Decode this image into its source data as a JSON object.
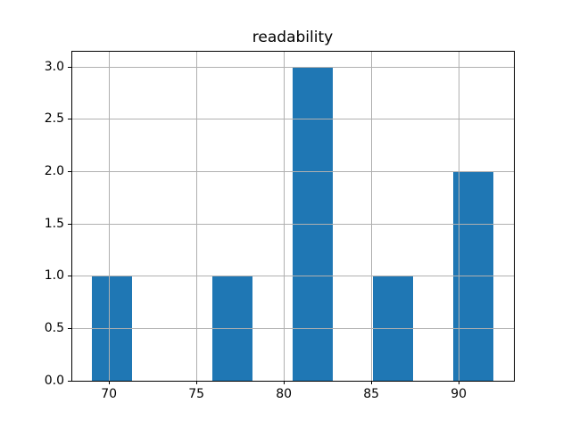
{
  "chart_data": {
    "type": "bar",
    "subtype": "histogram",
    "title": "readability",
    "bin_edges": [
      69.0,
      71.3,
      73.6,
      75.9,
      78.2,
      80.5,
      82.8,
      85.1,
      87.4,
      89.7,
      92.0
    ],
    "counts": [
      1,
      0,
      0,
      1,
      0,
      3,
      0,
      1,
      0,
      2
    ],
    "xlim": [
      67.85,
      93.15
    ],
    "ylim": [
      0,
      3.15
    ],
    "xticks": [
      70,
      75,
      80,
      85,
      90
    ],
    "xtick_labels": [
      "70",
      "75",
      "80",
      "85",
      "90"
    ],
    "yticks": [
      0,
      0.5,
      1,
      1.5,
      2,
      2.5,
      3
    ],
    "ytick_labels": [
      "0.0",
      "0.5",
      "1.0",
      "1.5",
      "2.0",
      "2.5",
      "3.0"
    ],
    "xlabel": "",
    "ylabel": "",
    "grid": true,
    "legend": false,
    "bar_color": "#1f77b4",
    "grid_color": "#b0b0b0",
    "spine_color": "#000000",
    "text_color": "#000000"
  }
}
